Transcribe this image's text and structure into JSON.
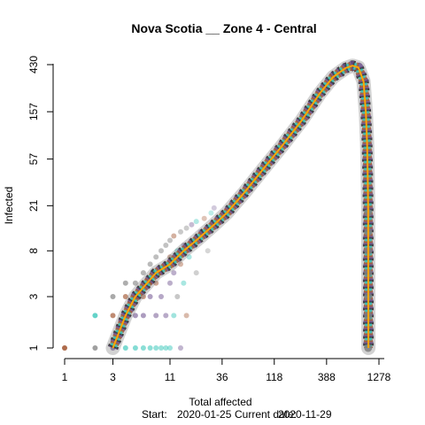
{
  "chart_data": {
    "type": "scatter",
    "title": "Nova Scotia __ Zone 4 - Central",
    "xlabel": "Total affected",
    "ylabel": "Infected",
    "x_scale": "log",
    "y_scale": "log",
    "xlim": [
      1,
      1278
    ],
    "ylim": [
      1,
      430
    ],
    "x_ticks": [
      "1",
      "3",
      "11",
      "36",
      "118",
      "388",
      "1278"
    ],
    "y_ticks": [
      "1",
      "3",
      "8",
      "21",
      "57",
      "157",
      "430"
    ],
    "footer": {
      "start_label": "Start:",
      "start_date": "2020-01-25",
      "current_label": "Current date:",
      "current_date": "2020-11-29"
    },
    "colors": {
      "trend": "#FFA500",
      "teal": "#2EC4B6",
      "grey": "#7F7F7F",
      "purple": "#6B4E8C",
      "brown": "#A0522D",
      "black": "#1A1A1A"
    },
    "trajectory": [
      [
        3,
        1
      ],
      [
        4,
        2
      ],
      [
        5,
        3
      ],
      [
        8,
        5
      ],
      [
        11,
        6
      ],
      [
        15,
        8
      ],
      [
        20,
        10
      ],
      [
        30,
        14
      ],
      [
        40,
        18
      ],
      [
        60,
        28
      ],
      [
        90,
        45
      ],
      [
        140,
        75
      ],
      [
        220,
        130
      ],
      [
        330,
        230
      ],
      [
        450,
        330
      ],
      [
        600,
        400
      ],
      [
        700,
        420
      ],
      [
        800,
        405
      ],
      [
        900,
        300
      ],
      [
        950,
        150
      ],
      [
        975,
        80
      ],
      [
        990,
        40
      ],
      [
        1000,
        20
      ],
      [
        1005,
        1
      ]
    ],
    "tail_points": [
      [
        1000,
        1
      ],
      [
        1000,
        2
      ],
      [
        1000,
        3
      ],
      [
        1000,
        5
      ],
      [
        1000,
        8
      ],
      [
        1000,
        12
      ],
      [
        1000,
        18
      ]
    ],
    "early_points": [
      [
        1,
        1
      ],
      [
        2,
        1
      ],
      [
        2,
        2
      ],
      [
        3,
        1
      ],
      [
        3,
        2
      ],
      [
        3,
        3
      ],
      [
        4,
        1
      ],
      [
        4,
        2
      ],
      [
        4,
        3
      ],
      [
        4,
        4
      ],
      [
        5,
        1
      ],
      [
        5,
        2
      ],
      [
        5,
        3
      ],
      [
        5,
        4
      ],
      [
        6,
        1
      ],
      [
        6,
        2
      ],
      [
        6,
        3
      ],
      [
        6,
        5
      ],
      [
        7,
        1
      ],
      [
        7,
        3
      ],
      [
        7,
        4
      ],
      [
        7,
        6
      ],
      [
        8,
        1
      ],
      [
        8,
        2
      ],
      [
        8,
        4
      ],
      [
        8,
        7
      ],
      [
        9,
        1
      ],
      [
        9,
        3
      ],
      [
        9,
        5
      ],
      [
        9,
        8
      ],
      [
        10,
        1
      ],
      [
        10,
        2
      ],
      [
        10,
        6
      ],
      [
        10,
        9
      ],
      [
        11,
        1
      ],
      [
        11,
        4
      ],
      [
        11,
        7
      ],
      [
        11,
        10
      ],
      [
        12,
        2
      ],
      [
        12,
        5
      ],
      [
        12,
        11
      ],
      [
        13,
        3
      ],
      [
        13,
        8
      ],
      [
        14,
        1
      ],
      [
        14,
        6
      ],
      [
        14,
        12
      ],
      [
        15,
        4
      ],
      [
        15,
        9
      ],
      [
        16,
        2
      ],
      [
        16,
        13
      ],
      [
        17,
        7
      ],
      [
        18,
        14
      ],
      [
        19,
        10
      ],
      [
        20,
        5
      ],
      [
        20,
        15
      ],
      [
        22,
        12
      ],
      [
        24,
        16
      ],
      [
        26,
        8
      ],
      [
        28,
        18
      ],
      [
        30,
        20
      ]
    ]
  }
}
